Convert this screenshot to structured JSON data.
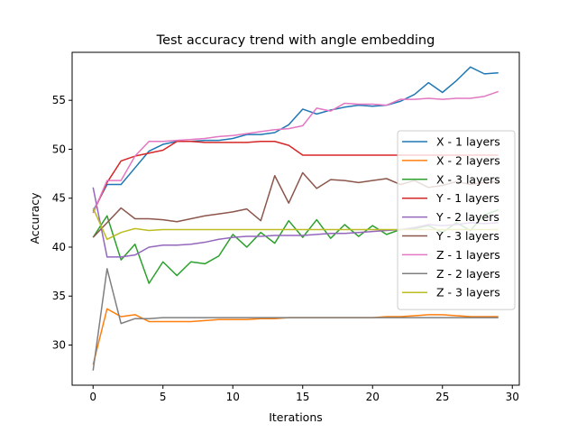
{
  "chart_data": {
    "type": "line",
    "title": "Test accuracy trend with angle embedding",
    "xlabel": "Iterations",
    "ylabel": "Accuracy",
    "xlim": [
      -1.5,
      30.5
    ],
    "ylim": [
      25.9,
      59.9
    ],
    "xticks": [
      0,
      5,
      10,
      15,
      20,
      25,
      30
    ],
    "yticks": [
      30,
      35,
      40,
      45,
      50,
      55
    ],
    "grid": false,
    "legend_position": "right",
    "x": [
      0,
      1,
      2,
      3,
      4,
      5,
      6,
      7,
      8,
      9,
      10,
      11,
      12,
      13,
      14,
      15,
      16,
      17,
      18,
      19,
      20,
      21,
      22,
      23,
      24,
      25,
      26,
      27,
      28,
      29
    ],
    "series": [
      {
        "name": "X - 1 layers",
        "color": "#1f77b4",
        "values": [
          43.7,
          46.4,
          46.4,
          48.1,
          49.8,
          50.5,
          50.8,
          50.8,
          50.9,
          50.9,
          51.1,
          51.5,
          51.5,
          51.7,
          52.5,
          54.1,
          53.6,
          54.0,
          54.3,
          54.5,
          54.4,
          54.5,
          54.9,
          55.6,
          56.8,
          55.8,
          57.0,
          58.4,
          57.7,
          57.8
        ]
      },
      {
        "name": "X - 2 layers",
        "color": "#ff7f0e",
        "values": [
          28.0,
          33.7,
          32.9,
          33.1,
          32.4,
          32.4,
          32.4,
          32.4,
          32.5,
          32.6,
          32.6,
          32.6,
          32.7,
          32.7,
          32.8,
          32.8,
          32.8,
          32.8,
          32.8,
          32.8,
          32.8,
          32.9,
          32.9,
          33.0,
          33.1,
          33.1,
          33.0,
          32.9,
          32.9,
          32.9
        ]
      },
      {
        "name": "X - 3 layers",
        "color": "#2ca02c",
        "values": [
          41.0,
          43.2,
          38.7,
          40.3,
          36.3,
          38.5,
          37.1,
          38.5,
          38.3,
          39.1,
          41.3,
          40.0,
          41.5,
          40.4,
          42.7,
          41.0,
          42.8,
          40.9,
          42.3,
          41.1,
          42.2,
          41.3,
          41.8,
          41.9,
          42.2,
          41.5,
          42.5,
          41.7,
          43.3,
          43.8
        ]
      },
      {
        "name": "Y - 1 layers",
        "color": "#d62728",
        "values": [
          43.5,
          46.6,
          48.8,
          49.3,
          49.6,
          49.9,
          50.8,
          50.8,
          50.7,
          50.7,
          50.7,
          50.7,
          50.8,
          50.8,
          50.4,
          49.4,
          49.4,
          49.4,
          49.4,
          49.4,
          49.4,
          49.4,
          49.4,
          49.4,
          49.4,
          49.4,
          49.4,
          49.4,
          49.4,
          49.4
        ]
      },
      {
        "name": "Y - 2 layers",
        "color": "#9467bd",
        "values": [
          46.1,
          39.0,
          39.0,
          39.2,
          40.0,
          40.2,
          40.2,
          40.3,
          40.5,
          40.8,
          41.0,
          41.1,
          41.1,
          41.2,
          41.2,
          41.2,
          41.3,
          41.4,
          41.4,
          41.5,
          41.6,
          41.7,
          41.8,
          42.0,
          42.3,
          42.2,
          42.3,
          42.5,
          42.4,
          42.5
        ]
      },
      {
        "name": "Y - 3 layers",
        "color": "#8c564b",
        "values": [
          41.0,
          42.5,
          44.0,
          42.9,
          42.9,
          42.8,
          42.6,
          42.9,
          43.2,
          43.4,
          43.6,
          43.9,
          42.7,
          47.3,
          44.5,
          47.6,
          46.0,
          46.9,
          46.8,
          46.6,
          46.8,
          47.0,
          46.4,
          46.8,
          46.1,
          46.3,
          46.7,
          46.4,
          46.6,
          46.7
        ]
      },
      {
        "name": "Z - 1 layers",
        "color": "#e377c2",
        "values": [
          43.5,
          46.8,
          46.8,
          49.3,
          50.8,
          50.8,
          50.9,
          51.0,
          51.1,
          51.3,
          51.4,
          51.6,
          51.8,
          52.0,
          52.1,
          52.4,
          54.2,
          53.9,
          54.7,
          54.6,
          54.6,
          54.5,
          55.1,
          55.1,
          55.2,
          55.1,
          55.2,
          55.2,
          55.4,
          55.9
        ]
      },
      {
        "name": "Z - 2 layers",
        "color": "#7f7f7f",
        "values": [
          27.4,
          37.8,
          32.2,
          32.7,
          32.7,
          32.8,
          32.8,
          32.8,
          32.8,
          32.8,
          32.8,
          32.8,
          32.8,
          32.8,
          32.8,
          32.8,
          32.8,
          32.8,
          32.8,
          32.8,
          32.8,
          32.8,
          32.8,
          32.8,
          32.8,
          32.8,
          32.8,
          32.8,
          32.8,
          32.8
        ]
      },
      {
        "name": "Z - 3 layers",
        "color": "#bcbd22",
        "values": [
          44.0,
          40.8,
          41.5,
          41.9,
          41.7,
          41.8,
          41.8,
          41.8,
          41.8,
          41.8,
          41.8,
          41.8,
          41.8,
          41.8,
          41.8,
          41.8,
          41.8,
          41.8,
          41.8,
          41.8,
          41.8,
          41.8,
          41.8,
          41.8,
          41.8,
          41.8,
          41.8,
          41.8,
          41.8,
          41.8
        ]
      }
    ]
  }
}
